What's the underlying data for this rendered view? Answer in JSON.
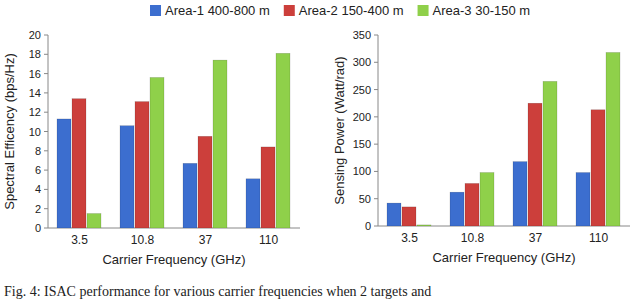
{
  "chart_data": [
    {
      "type": "bar",
      "categories": [
        "3.5",
        "10.8",
        "37",
        "110"
      ],
      "x_label": "Carrier Frequency (GHz)",
      "y_label": "Spectral Efficency (bps/Hz)",
      "series": [
        {
          "name": "Area-1 400-800 m",
          "color": "#3c6ecf",
          "values": [
            11.3,
            10.6,
            6.7,
            5.1
          ]
        },
        {
          "name": "Area-2 150-400 m",
          "color": "#cc3f3b",
          "values": [
            13.4,
            13.1,
            9.5,
            8.4
          ]
        },
        {
          "name": "Area-3 30-150 m",
          "color": "#8fd04a",
          "values": [
            1.5,
            15.6,
            17.4,
            18.1
          ]
        }
      ],
      "ylim": [
        0,
        20
      ],
      "yticks": [
        0,
        2,
        4,
        6,
        8,
        10,
        12,
        14,
        16,
        18,
        20
      ],
      "grid": false,
      "legend": "top"
    },
    {
      "type": "bar",
      "categories": [
        "3.5",
        "10.8",
        "37",
        "110"
      ],
      "x_label": "Carrier Frequency (GHz)",
      "y_label": "Sensing Power (Watt/rad)",
      "series": [
        {
          "color": "#3c6ecf",
          "values": [
            42,
            62,
            118,
            98
          ]
        },
        {
          "color": "#cc3f3b",
          "values": [
            35,
            78,
            225,
            213
          ]
        },
        {
          "color": "#8fd04a",
          "values": [
            2,
            98,
            265,
            318
          ]
        }
      ],
      "ylim": [
        0,
        350
      ],
      "yticks": [
        0,
        50,
        100,
        150,
        200,
        250,
        300,
        350
      ],
      "grid": false
    }
  ],
  "caption": "Fig. 4: ISAC performance for various carrier frequencies when 2 targets and"
}
